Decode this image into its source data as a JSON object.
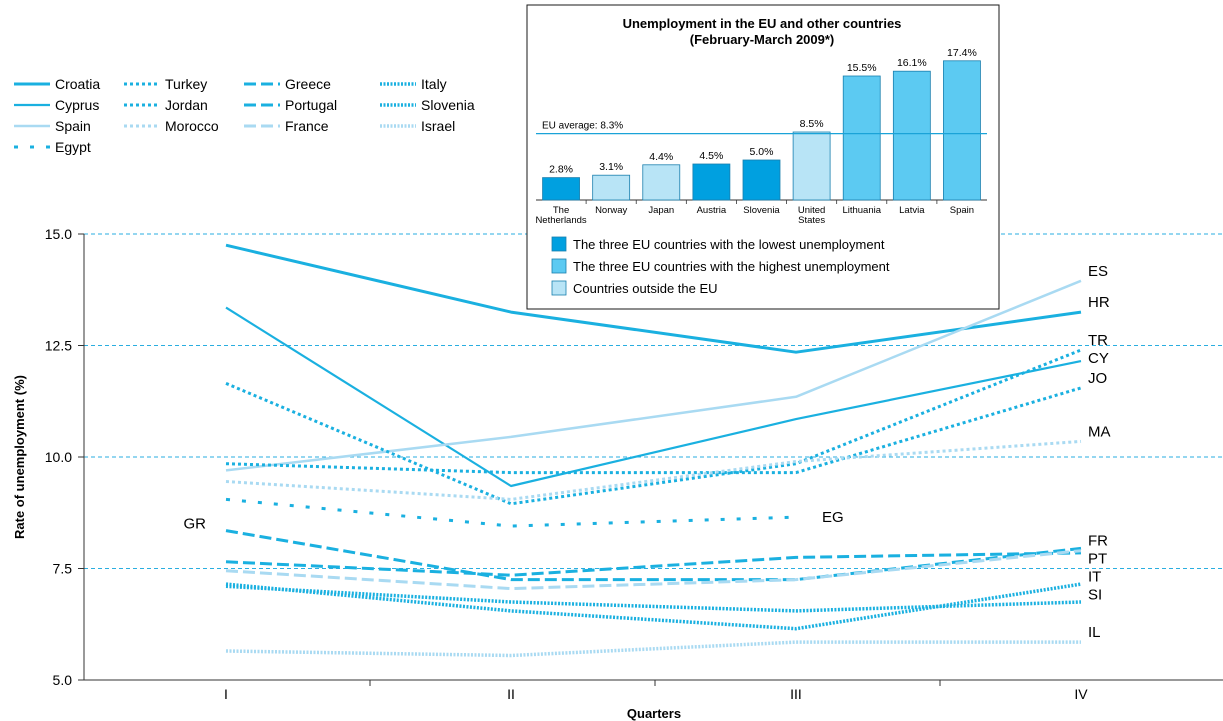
{
  "chart_data": [
    {
      "type": "line",
      "title": "",
      "xlabel": "Quarters",
      "ylabel": "Rate of unemployment (%)",
      "categories": [
        "I",
        "II",
        "III",
        "IV"
      ],
      "ylim": [
        5.0,
        15.0
      ],
      "yticks": [
        "5.0",
        "7.5",
        "10.0",
        "12.5",
        "15.0"
      ],
      "grid": "horizontal dashed",
      "legend_position": "top-left",
      "series": [
        {
          "name": "Croatia",
          "code": "HR",
          "color": "#1ab0e0",
          "dash": "solid",
          "width": 3,
          "values": [
            14.75,
            13.25,
            12.35,
            13.25
          ]
        },
        {
          "name": "Cyprus",
          "code": "CY",
          "color": "#1ab0e0",
          "dash": "solid",
          "width": 2.2,
          "values": [
            13.35,
            9.35,
            10.85,
            12.15
          ]
        },
        {
          "name": "Spain",
          "code": "ES",
          "color": "#a9daf2",
          "dash": "solid",
          "width": 2.5,
          "values": [
            9.7,
            10.45,
            11.35,
            13.95
          ]
        },
        {
          "name": "Egypt",
          "code": "EG",
          "color": "#1ab0e0",
          "dash": "egypt",
          "width": 3,
          "values": [
            9.05,
            8.45,
            8.65,
            null
          ]
        },
        {
          "name": "Turkey",
          "code": "TR",
          "color": "#1ab0e0",
          "dash": "dots",
          "width": 3,
          "values": [
            11.65,
            8.95,
            9.85,
            12.4
          ]
        },
        {
          "name": "Jordan",
          "code": "JO",
          "color": "#1ab0e0",
          "dash": "dots",
          "width": 3,
          "values": [
            9.85,
            9.65,
            9.65,
            11.55
          ]
        },
        {
          "name": "Morocco",
          "code": "MA",
          "color": "#a9daf2",
          "dash": "dots",
          "width": 3,
          "values": [
            9.45,
            9.05,
            9.9,
            10.35
          ]
        },
        {
          "name": "Greece",
          "code": "GR",
          "color": "#1ab0e0",
          "dash": "long",
          "width": 3,
          "values": [
            8.35,
            7.25,
            7.25,
            7.95
          ]
        },
        {
          "name": "Portugal",
          "code": "PT",
          "color": "#1ab0e0",
          "dash": "long",
          "width": 3,
          "values": [
            7.65,
            7.35,
            7.75,
            7.85
          ]
        },
        {
          "name": "France",
          "code": "FR",
          "color": "#a9daf2",
          "dash": "long",
          "width": 3,
          "values": [
            7.45,
            7.05,
            7.25,
            7.9
          ]
        },
        {
          "name": "Italy",
          "code": "IT",
          "color": "#1ab0e0",
          "dash": "fine",
          "width": 3.5,
          "values": [
            7.15,
            6.55,
            6.15,
            7.15
          ]
        },
        {
          "name": "Slovenia",
          "code": "SI",
          "color": "#1ab0e0",
          "dash": "fine",
          "width": 3.5,
          "values": [
            7.1,
            6.75,
            6.55,
            6.75
          ]
        },
        {
          "name": "Israel",
          "code": "IL",
          "color": "#a9daf2",
          "dash": "fine",
          "width": 3.5,
          "values": [
            5.65,
            5.55,
            5.85,
            5.85
          ]
        }
      ],
      "series_labels": [
        {
          "text": "GR",
          "series": "Greece",
          "side": "left"
        },
        {
          "text": "EG",
          "series": "Egypt",
          "side": "end"
        },
        {
          "text": "ES",
          "series": "Spain",
          "side": "right"
        },
        {
          "text": "HR",
          "series": "Croatia",
          "side": "right"
        },
        {
          "text": "TR",
          "series": "Turkey",
          "side": "right"
        },
        {
          "text": "CY",
          "series": "Cyprus",
          "side": "right"
        },
        {
          "text": "JO",
          "series": "Jordan",
          "side": "right"
        },
        {
          "text": "MA",
          "series": "Morocco",
          "side": "right"
        },
        {
          "text": "FR",
          "series": "France",
          "side": "right"
        },
        {
          "text": "PT",
          "series": "Portugal",
          "side": "right"
        },
        {
          "text": "IT",
          "series": "Italy",
          "side": "right"
        },
        {
          "text": "SI",
          "series": "Slovenia",
          "side": "right"
        },
        {
          "text": "IL",
          "series": "Israel",
          "side": "right"
        }
      ]
    },
    {
      "type": "bar",
      "title": "Unemployment in the EU and other countries",
      "subtitle": "(February-March 2009*)",
      "categories": [
        [
          "The",
          "Netherlands"
        ],
        [
          "Norway"
        ],
        [
          "Japan"
        ],
        [
          "Austria"
        ],
        [
          "Slovenia"
        ],
        [
          "United",
          "States"
        ],
        [
          "Lithuania"
        ],
        [
          "Latvia"
        ],
        [
          "Spain"
        ]
      ],
      "values": [
        2.8,
        3.1,
        4.4,
        4.5,
        5.0,
        8.5,
        15.5,
        16.1,
        17.4
      ],
      "value_labels": [
        "2.8%",
        "3.1%",
        "4.4%",
        "4.5%",
        "5.0%",
        "8.5%",
        "15.5%",
        "16.1%",
        "17.4%"
      ],
      "groups": [
        "low",
        "outside",
        "outside",
        "low",
        "low",
        "outside",
        "high",
        "high",
        "high"
      ],
      "ylim": [
        0,
        18
      ],
      "reference_line": {
        "label": "EU average: 8.3%",
        "value": 8.3
      },
      "colors": {
        "low": "#00a0e0",
        "high": "#5ccaf2",
        "outside": "#b8e4f6",
        "border": "#1a7fae"
      },
      "legend": [
        {
          "group": "low",
          "label": "The three EU countries with the lowest unemployment"
        },
        {
          "group": "high",
          "label": "The three EU countries with the highest unemployment"
        },
        {
          "group": "outside",
          "label": "Countries outside the EU"
        }
      ]
    }
  ]
}
